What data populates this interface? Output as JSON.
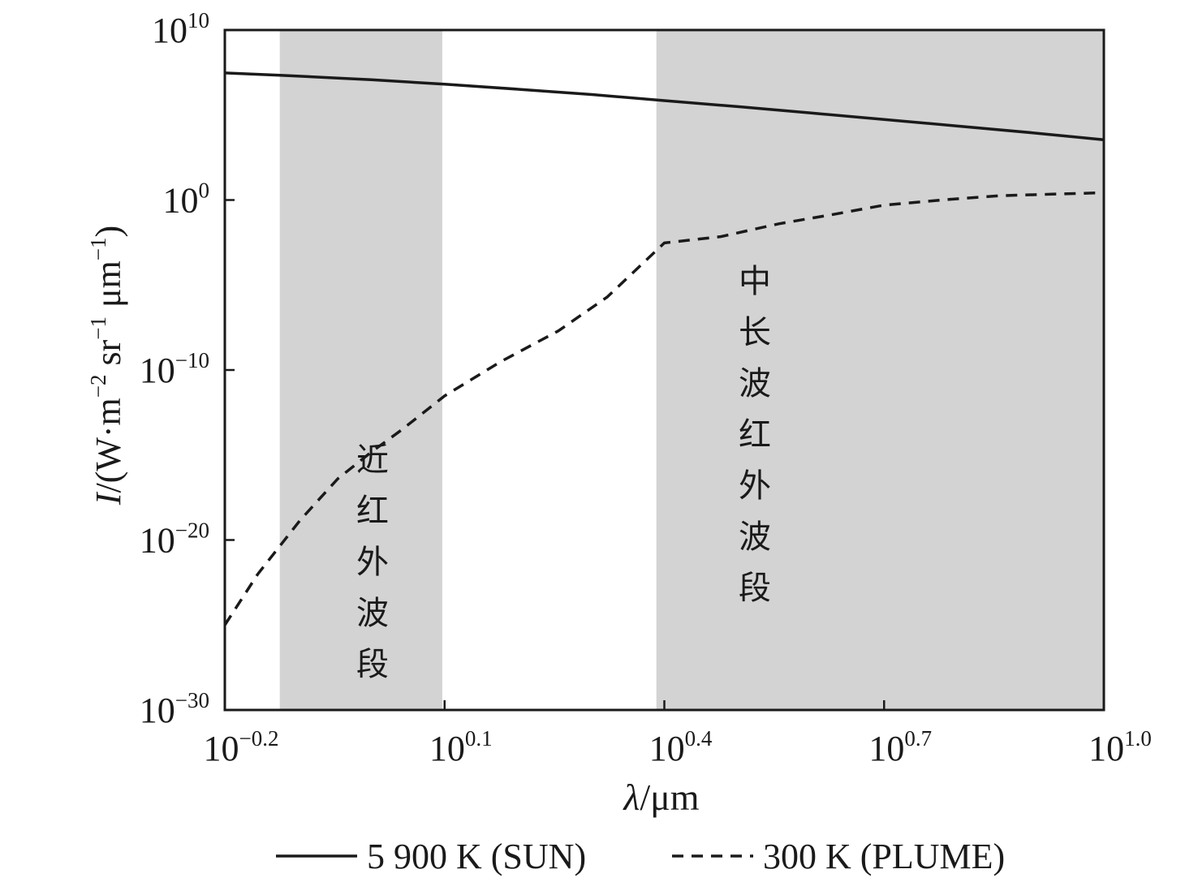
{
  "chart_data": {
    "type": "line",
    "x_scale": "log",
    "y_scale": "log",
    "xlim": [
      0.631,
      10
    ],
    "ylim": [
      1e-30,
      10000000000.0
    ],
    "xticks": [
      {
        "base": "10",
        "exp": "−0.2"
      },
      {
        "base": "10",
        "exp": "0.1"
      },
      {
        "base": "10",
        "exp": "0.4"
      },
      {
        "base": "10",
        "exp": "0.7"
      },
      {
        "base": "10",
        "exp": "1.0"
      }
    ],
    "xtick_values": [
      0.631,
      1.259,
      2.512,
      5.012,
      10
    ],
    "yticks": [
      {
        "base": "10",
        "exp": "10"
      },
      {
        "base": "10",
        "exp": "0"
      },
      {
        "base": "10",
        "exp": "−10"
      },
      {
        "base": "10",
        "exp": "−20"
      },
      {
        "base": "10",
        "exp": "−30"
      }
    ],
    "ytick_values": [
      10000000000.0,
      1.0,
      1e-10,
      1e-20,
      1e-30
    ],
    "xlabel": {
      "symbol": "λ",
      "unit": "/μm"
    },
    "ylabel": {
      "symbol": "I",
      "text": "/(W·m",
      "e1": "−2",
      "t2": " sr",
      "e2": "−1",
      "t3": " μm",
      "e3": "−1",
      "t4": ")"
    },
    "bands": [
      {
        "label": "近红外波段",
        "x_range": [
          0.75,
          1.25
        ]
      },
      {
        "label": "中长波红外波段",
        "x_range": [
          2.45,
          10
        ]
      }
    ],
    "series": [
      {
        "name": "5 900 K (SUN)",
        "style": "solid",
        "color": "#1a1a1a",
        "x": [
          0.631,
          0.75,
          0.9,
          1.0,
          1.259,
          1.6,
          2.0,
          2.512,
          3.2,
          4.0,
          5.012,
          6.5,
          8.0,
          10.0
        ],
        "y": [
          30000000.0,
          22000000.0,
          15000000.0,
          12000000.0,
          6500000.0,
          3200000.0,
          1600000.0,
          700000.0,
          300000.0,
          130000.0,
          55000.0,
          20000.0,
          9000.0,
          3500.0
        ]
      },
      {
        "name": "300 K (PLUME)",
        "style": "dashed",
        "color": "#1a1a1a",
        "x": [
          0.631,
          0.7,
          0.8,
          0.9,
          1.0,
          1.1,
          1.259,
          1.5,
          1.8,
          2.1,
          2.512,
          3.0,
          3.6,
          4.3,
          5.012,
          6.0,
          7.2,
          8.5,
          10.0
        ],
        "y": [
          1e-25,
          1e-22,
          1.5e-19,
          4e-17,
          1.5e-15,
          3e-14,
          3e-12,
          3e-10,
          2e-08,
          2e-06,
          0.003,
          0.007,
          0.04,
          0.15,
          0.5,
          1.0,
          1.8,
          2.2,
          2.7
        ]
      }
    ],
    "legend_position": "bottom-center",
    "grid": false
  }
}
